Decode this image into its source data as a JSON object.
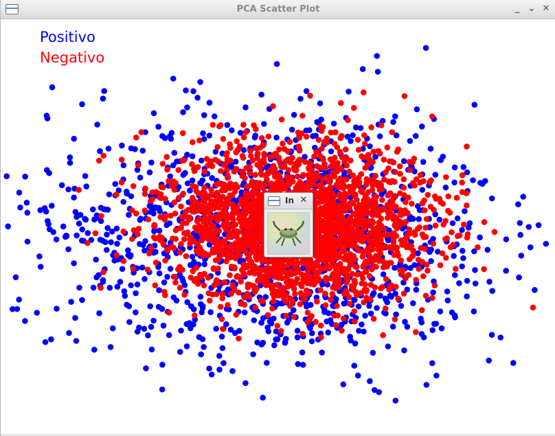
{
  "window": {
    "title": "PCA Scatter Plot",
    "icon": "window-icon",
    "controls": [
      "minimize-icon",
      "restore-icon",
      "close-icon"
    ]
  },
  "legend": {
    "positive_label": "Positivo",
    "negative_label": "Negativo"
  },
  "popup": {
    "title": "In",
    "close_symbol": "✕",
    "image_description_icon": "crab-icon"
  },
  "colors": {
    "positive": "#0000ff",
    "negative": "#ff0000",
    "background": "#ffffff"
  },
  "chart_data": {
    "type": "scatter",
    "title": "",
    "xlabel": "",
    "ylabel": "",
    "grid": false,
    "legend_placement": "top-left",
    "series": [
      {
        "name": "Positivo",
        "color": "#0000ff",
        "point_count": 1300
      },
      {
        "name": "Negativo",
        "color": "#ff0000",
        "point_count": 2300
      }
    ]
  }
}
